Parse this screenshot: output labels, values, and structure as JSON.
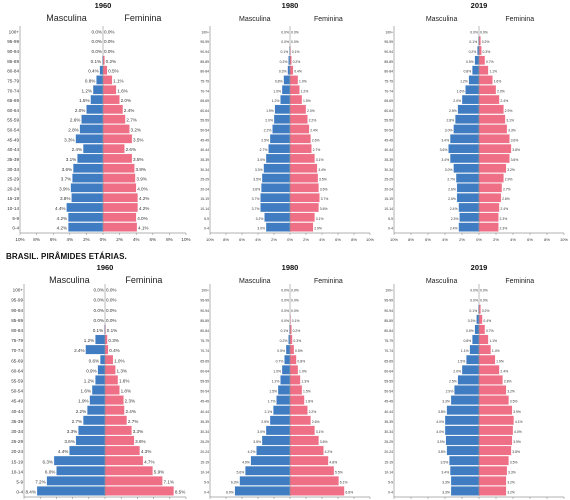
{
  "section_title": "BRASIL. PIRÂMIDES ETÁRIAS.",
  "colors": {
    "male": "#3f7cc1",
    "female": "#ee6f86",
    "axis": "#666666",
    "text": "#333333"
  },
  "chart_data": [
    {
      "type": "bar",
      "orientation": "horizontal-pyramid",
      "title": "1960",
      "male_label": "Masculina",
      "female_label": "Feminina",
      "categories": [
        "100+",
        "95-99",
        "90-94",
        "85-89",
        "80-84",
        "75-79",
        "70-74",
        "65-69",
        "60-64",
        "55-59",
        "50-54",
        "45-49",
        "40-44",
        "35-39",
        "30-34",
        "25-29",
        "20-24",
        "15-19",
        "10-14",
        "5-9",
        "0-4"
      ],
      "series": [
        {
          "name": "Masculina",
          "values": [
            0.0,
            0.0,
            0.0,
            0.1,
            0.4,
            0.8,
            1.2,
            1.5,
            2.0,
            2.6,
            2.8,
            3.3,
            2.4,
            3.1,
            3.6,
            3.7,
            3.9,
            3.8,
            4.4,
            4.2,
            4.2
          ]
        },
        {
          "name": "Feminina",
          "values": [
            0.0,
            0.0,
            0.0,
            0.2,
            0.5,
            1.1,
            1.6,
            2.0,
            2.4,
            2.7,
            3.2,
            3.5,
            2.6,
            3.5,
            3.8,
            3.9,
            4.0,
            4.2,
            4.2,
            4.0,
            4.1
          ]
        }
      ],
      "xlim": [
        -10,
        10
      ],
      "xticks": [
        "10%",
        "8%",
        "6%",
        "4%",
        "2%",
        "0%",
        "2%",
        "4%",
        "6%",
        "8%",
        "10%"
      ]
    },
    {
      "type": "bar",
      "orientation": "horizontal-pyramid",
      "title": "1980",
      "male_label": "Masculina",
      "female_label": "Feminina",
      "categories": [
        "100+",
        "95-99",
        "90-94",
        "85-89",
        "80-84",
        "75-79",
        "70-74",
        "65-69",
        "60-64",
        "55-59",
        "50-54",
        "45-49",
        "40-44",
        "35-39",
        "30-34",
        "25-29",
        "20-24",
        "15-19",
        "10-14",
        "5-9",
        "0-4"
      ],
      "series": [
        {
          "name": "Masculina",
          "values": [
            0.0,
            0.0,
            0.1,
            0.2,
            0.3,
            0.8,
            1.0,
            1.2,
            1.9,
            2.0,
            2.2,
            2.5,
            2.7,
            3.0,
            3.3,
            3.5,
            3.6,
            3.7,
            3.7,
            3.2,
            3.0
          ]
        },
        {
          "name": "Feminina",
          "values": [
            0.0,
            0.0,
            0.1,
            0.2,
            0.4,
            1.0,
            1.2,
            1.5,
            2.0,
            2.2,
            2.4,
            2.6,
            2.7,
            3.1,
            3.4,
            3.5,
            3.6,
            3.7,
            3.6,
            3.1,
            2.9
          ]
        }
      ],
      "xlim": [
        -10,
        10
      ],
      "xticks": [
        "10%",
        "8%",
        "6%",
        "4%",
        "2%",
        "0%",
        "2%",
        "4%",
        "6%",
        "8%",
        "10%"
      ]
    },
    {
      "type": "bar",
      "orientation": "horizontal-pyramid",
      "title": "2019",
      "male_label": "Masculina",
      "female_label": "Feminina",
      "categories": [
        "100+",
        "95-99",
        "90-94",
        "85-89",
        "80-84",
        "75-79",
        "70-74",
        "65-69",
        "60-64",
        "55-59",
        "50-54",
        "45-49",
        "40-44",
        "35-39",
        "30-34",
        "25-29",
        "20-24",
        "15-19",
        "10-14",
        "5-9",
        "0-4"
      ],
      "series": [
        {
          "name": "Masculina",
          "values": [
            0.0,
            0.1,
            0.2,
            0.5,
            0.8,
            1.2,
            1.6,
            2.0,
            2.5,
            2.8,
            3.0,
            3.4,
            3.6,
            3.4,
            3.0,
            2.7,
            2.6,
            2.6,
            2.4,
            2.3,
            2.4
          ]
        },
        {
          "name": "Feminina",
          "values": [
            0.0,
            0.2,
            0.3,
            0.7,
            1.1,
            1.6,
            2.0,
            2.4,
            2.9,
            3.1,
            3.3,
            3.6,
            3.8,
            3.6,
            3.2,
            2.9,
            2.7,
            2.6,
            2.4,
            2.3,
            2.3
          ]
        }
      ],
      "xlim": [
        -10,
        10
      ],
      "xticks": [
        "10%",
        "8%",
        "6%",
        "4%",
        "2%",
        "0%",
        "2%",
        "4%",
        "6%",
        "8%",
        "10%"
      ]
    },
    {
      "type": "bar",
      "orientation": "horizontal-pyramid",
      "title": "1960",
      "male_label": "Masculina",
      "female_label": "Feminina",
      "categories": [
        "100+",
        "95-99",
        "90-94",
        "85-89",
        "80-84",
        "75-79",
        "70-74",
        "65-69",
        "60-64",
        "55-59",
        "50-54",
        "45-49",
        "40-44",
        "35-39",
        "30-34",
        "25-29",
        "20-24",
        "15-19",
        "10-14",
        "5-9",
        "0-4"
      ],
      "series": [
        {
          "name": "Masculina",
          "values": [
            0.0,
            0.0,
            0.0,
            0.0,
            0.1,
            1.2,
            2.4,
            0.6,
            0.9,
            1.2,
            1.6,
            1.9,
            2.2,
            2.7,
            3.3,
            3.6,
            4.4,
            6.3,
            6.0,
            7.2,
            8.4
          ]
        },
        {
          "name": "Feminina",
          "values": [
            0.0,
            0.0,
            0.0,
            0.0,
            0.1,
            0.3,
            0.4,
            1.0,
            1.3,
            1.6,
            1.8,
            2.3,
            2.4,
            2.7,
            3.3,
            3.6,
            4.3,
            4.7,
            5.9,
            7.1,
            8.5
          ]
        }
      ],
      "xlim": [
        -10,
        10
      ],
      "xticks": [
        "10%",
        "8%",
        "6%",
        "4%",
        "2%",
        "0%",
        "2%",
        "4%",
        "6%",
        "8%",
        "10%"
      ]
    },
    {
      "type": "bar",
      "orientation": "horizontal-pyramid",
      "title": "1980",
      "male_label": "Masculina",
      "female_label": "Feminina",
      "categories": [
        "100+",
        "95-99",
        "90-94",
        "85-89",
        "80-84",
        "75-79",
        "70-74",
        "65-69",
        "60-64",
        "55-59",
        "50-54",
        "45-49",
        "40-44",
        "35-39",
        "30-34",
        "25-29",
        "20-24",
        "15-19",
        "10-14",
        "5-9",
        "0-4"
      ],
      "series": [
        {
          "name": "Masculina",
          "values": [
            0.0,
            0.0,
            0.0,
            0.0,
            0.1,
            0.2,
            0.5,
            0.7,
            1.0,
            1.2,
            1.5,
            1.7,
            2.1,
            2.5,
            3.0,
            3.5,
            4.2,
            4.9,
            5.6,
            6.3,
            6.9
          ]
        },
        {
          "name": "Feminina",
          "values": [
            0.0,
            0.0,
            0.0,
            0.1,
            0.2,
            0.3,
            0.5,
            0.8,
            1.0,
            1.3,
            1.5,
            1.8,
            2.2,
            2.6,
            3.1,
            3.6,
            4.2,
            4.8,
            5.5,
            6.1,
            6.8
          ]
        }
      ],
      "xlim": [
        -10,
        10
      ],
      "xticks": [
        "10%",
        "8%",
        "6%",
        "4%",
        "2%",
        "0%",
        "2%",
        "4%",
        "6%",
        "8%",
        "10%"
      ]
    },
    {
      "type": "bar",
      "orientation": "horizontal-pyramid",
      "title": "2019",
      "male_label": "Masculina",
      "female_label": "Feminina",
      "categories": [
        "100+",
        "95-99",
        "90-94",
        "85-89",
        "80-84",
        "75-79",
        "70-74",
        "65-69",
        "60-64",
        "55-59",
        "50-54",
        "45-49",
        "40-44",
        "35-39",
        "30-34",
        "25-29",
        "20-24",
        "15-19",
        "10-14",
        "5-9",
        "0-4"
      ],
      "series": [
        {
          "name": "Masculina",
          "values": [
            0.0,
            0.0,
            0.1,
            0.3,
            0.5,
            0.8,
            1.1,
            1.5,
            2.0,
            2.5,
            2.9,
            3.3,
            3.8,
            4.0,
            4.0,
            3.9,
            3.8,
            3.5,
            3.4,
            3.3,
            3.3
          ]
        },
        {
          "name": "Feminina",
          "values": [
            0.0,
            0.0,
            0.2,
            0.4,
            0.7,
            1.1,
            1.4,
            1.9,
            2.4,
            2.8,
            3.2,
            3.5,
            3.9,
            4.1,
            4.0,
            3.9,
            3.8,
            3.5,
            3.3,
            3.2,
            3.2
          ]
        }
      ],
      "xlim": [
        -10,
        10
      ],
      "xticks": [
        "10%",
        "8%",
        "6%",
        "4%",
        "2%",
        "0%",
        "2%",
        "4%",
        "6%",
        "8%",
        "10%"
      ]
    }
  ]
}
